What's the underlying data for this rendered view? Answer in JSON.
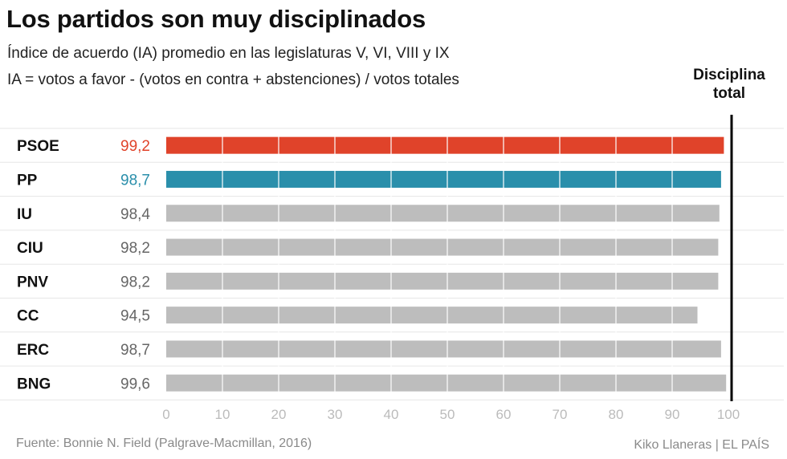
{
  "title": "Los partidos son muy disciplinados",
  "subtitle_line1": "Índice de acuerdo (IA) promedio en las legislaturas V, VI, VIII y IX",
  "subtitle_line2": "IA = votos a favor - (votos en contra + abstenciones) / votos totales",
  "reference_label": {
    "line1": "Disciplina",
    "line2": "total",
    "value": 100
  },
  "source": "Fuente: Bonnie N. Field (Palgrave-Macmillan, 2016)",
  "credit": "Kiko Llaneras  |  EL PAÍS",
  "colors": {
    "psoe": "#e0432a",
    "pp": "#2a8fab",
    "default": "#bdbdbd",
    "value_default": "#666666",
    "axis_tick": "#bbbbbb",
    "reference_line": "#000000",
    "row_divider": "#e6e6e6"
  },
  "chart_data": {
    "type": "bar",
    "orientation": "horizontal",
    "categories": [
      "PSOE",
      "PP",
      "IU",
      "CIU",
      "PNV",
      "CC",
      "ERC",
      "BNG"
    ],
    "values": [
      99.2,
      98.7,
      98.4,
      98.2,
      98.2,
      94.5,
      98.7,
      99.6
    ],
    "value_labels": [
      "99,2",
      "98,7",
      "98,4",
      "98,2",
      "98,2",
      "94,5",
      "98,7",
      "99,6"
    ],
    "bar_colors": [
      "#e0432a",
      "#2a8fab",
      "#bdbdbd",
      "#bdbdbd",
      "#bdbdbd",
      "#bdbdbd",
      "#bdbdbd",
      "#bdbdbd"
    ],
    "xlim": [
      0,
      100
    ],
    "x_ticks": [
      0,
      10,
      20,
      30,
      40,
      50,
      60,
      70,
      80,
      90,
      100
    ],
    "grid": true,
    "reference_line": 100
  }
}
